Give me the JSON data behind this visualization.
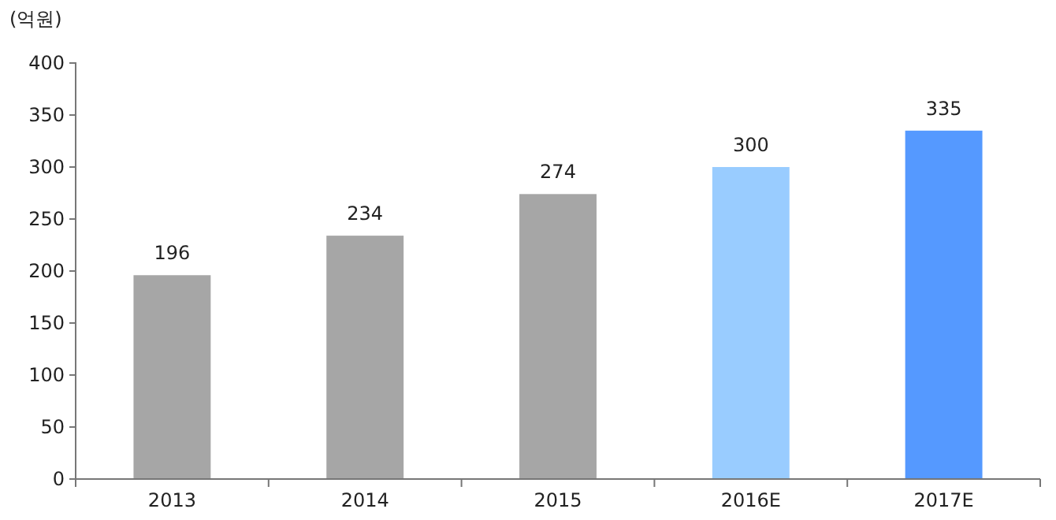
{
  "chart_data": {
    "type": "bar",
    "ylabel": "(억원)",
    "categories": [
      "2013",
      "2014",
      "2015",
      "2016E",
      "2017E"
    ],
    "values": [
      196,
      234,
      274,
      300,
      335
    ],
    "colors": [
      "#a6a6a6",
      "#a6a6a6",
      "#a6a6a6",
      "#99ccff",
      "#5599ff"
    ],
    "ylim": [
      0,
      400
    ],
    "yticks": [
      0,
      50,
      100,
      150,
      200,
      250,
      300,
      350,
      400
    ],
    "grid": false,
    "data_labels": true
  }
}
